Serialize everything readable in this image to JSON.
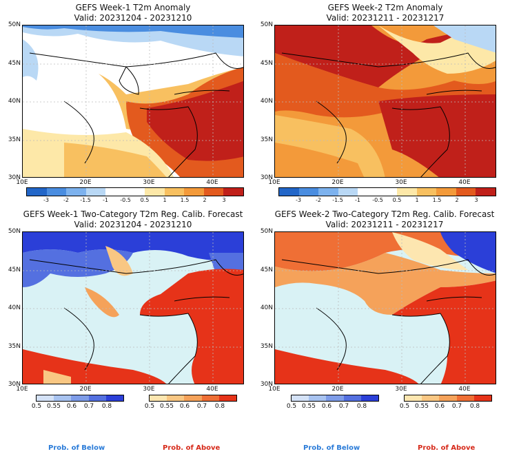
{
  "panels": [
    {
      "title": "GEFS Week-1 T2m Anomaly",
      "valid": "Valid: 20231204 - 20231210"
    },
    {
      "title": "GEFS Week-2 T2m Anomaly",
      "valid": "Valid: 20231211 - 20231217"
    },
    {
      "title": "GEFS Week-1 Two-Category T2m Reg. Calib. Forecast",
      "valid": "Valid: 20231204 - 20231210"
    },
    {
      "title": "GEFS Week-2 Two-Category T2m Reg. Calib. Forecast",
      "valid": "Valid: 20231211 - 20231217"
    }
  ],
  "axes": {
    "lat_labels": [
      "50N",
      "45N",
      "40N",
      "35N",
      "30N"
    ],
    "lon_labels": [
      "10E",
      "20E",
      "30E",
      "40E"
    ]
  },
  "anomaly_colorbar": {
    "tick_labels": [
      "-3",
      "-2",
      "-1.5",
      "-1",
      "-0.5",
      "0.5",
      "1",
      "1.5",
      "2",
      "3"
    ],
    "colors": [
      "#2266c8",
      "#4a8de0",
      "#7db2ee",
      "#b9d8f5",
      "#ffffff",
      "#ffffff",
      "#fde8a8",
      "#f8c060",
      "#f39a3a",
      "#e35a1e",
      "#c0201a"
    ]
  },
  "prob_below_colorbar": {
    "tick_labels": [
      "0.5",
      "0.55",
      "0.6",
      "0.7",
      "0.8"
    ],
    "colors": [
      "#d4e2f7",
      "#a8c3f0",
      "#7e9ce8",
      "#5470e0",
      "#2b3fd8"
    ]
  },
  "prob_above_colorbar": {
    "tick_labels": [
      "0.5",
      "0.55",
      "0.6",
      "0.7",
      "0.8"
    ],
    "colors": [
      "#fde6b0",
      "#f9c783",
      "#f5a25a",
      "#ef6f35",
      "#e63319"
    ]
  },
  "footer": {
    "below_label": "Prob. of Below",
    "above_label": "Prob. of Above",
    "below_color": "#2a7bd8",
    "above_color": "#d62a1a"
  }
}
